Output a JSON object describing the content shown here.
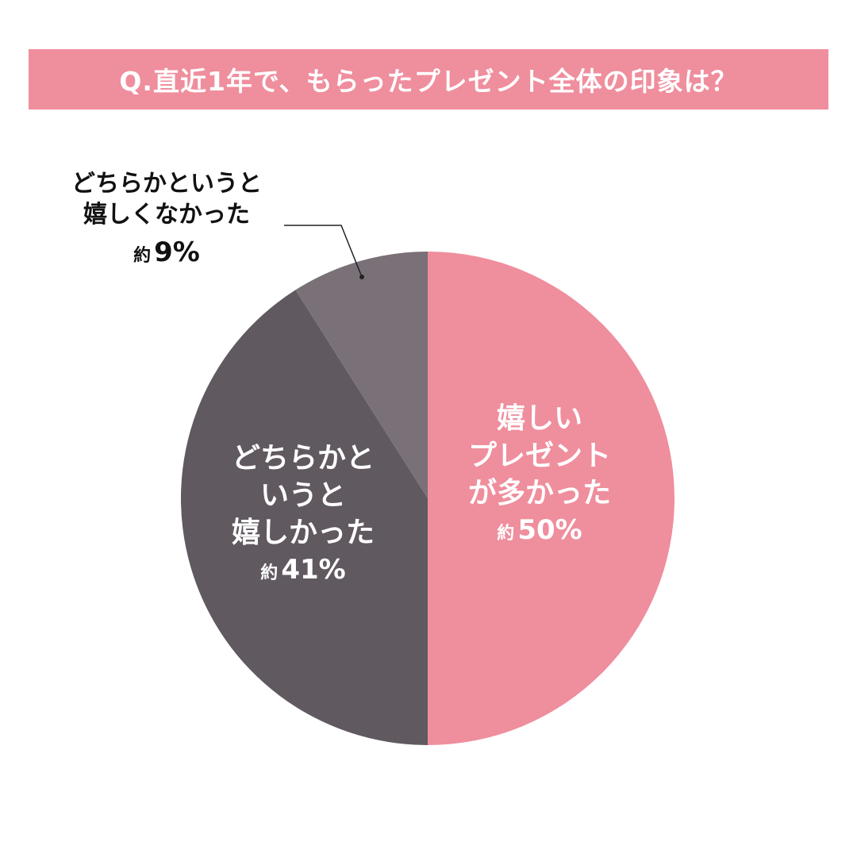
{
  "header": {
    "title": "Q.直近1年で、もらったプレゼント全体の印象は？"
  },
  "colors": {
    "title_bg": "#ef8e9d",
    "slice_pink": "#ef8e9d",
    "slice_dark": "#605960",
    "slice_gray": "#7a7077",
    "leader_line": "#222222"
  },
  "chart_data": {
    "type": "pie",
    "title": "Q.直近1年で、もらったプレゼント全体の印象は？",
    "start_angle": "12 o'clock, clockwise",
    "slices": [
      {
        "label": "嬉しいプレゼントが多かった",
        "value": 50,
        "display": "約 50%",
        "color": "#ef8e9d"
      },
      {
        "label": "どちらかというと嬉しかった",
        "value": 41,
        "display": "約 41%",
        "color": "#605960"
      },
      {
        "label": "どちらかというと嬉しくなかった",
        "value": 9,
        "display": "約 9%",
        "color": "#7a7077"
      }
    ],
    "legend": "none (labels placed on/near slices)"
  },
  "labels": {
    "pink": {
      "lines": [
        "嬉しい",
        "プレゼント",
        "が多かった"
      ],
      "prefix": "約",
      "pct": "50%"
    },
    "dark": {
      "lines": [
        "どちらかと",
        "いうと",
        "嬉しかった"
      ],
      "prefix": "約",
      "pct": "41%"
    },
    "gray": {
      "lines": [
        "どちらかというと",
        "嬉しくなかった"
      ],
      "prefix": "約",
      "pct": "9%"
    }
  }
}
